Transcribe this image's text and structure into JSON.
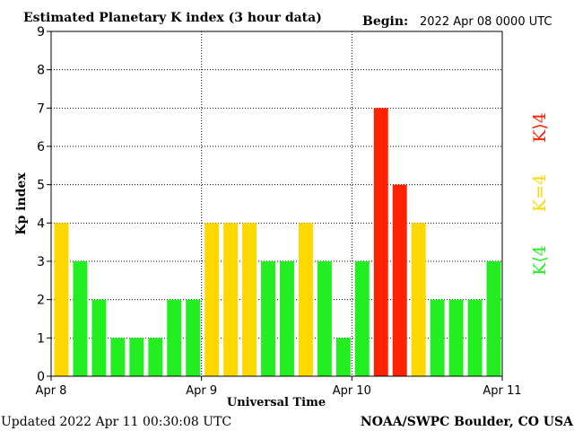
{
  "chart_data": {
    "type": "bar",
    "title": "Estimated Planetary K index (3 hour data)",
    "begin_label": "Begin:",
    "begin_value": "2022 Apr 08 0000 UTC",
    "ylabel": "Kp index",
    "xlabel": "Universal Time",
    "ylim": [
      0,
      9
    ],
    "yticks": [
      "0",
      "1",
      "2",
      "3",
      "4",
      "5",
      "6",
      "7",
      "8",
      "9"
    ],
    "x_day_labels": [
      "Apr 8",
      "Apr 9",
      "Apr 10",
      "Apr 11"
    ],
    "intervals_per_day": 8,
    "values": [
      4,
      3,
      2,
      1,
      1,
      1,
      2,
      2,
      4,
      4,
      4,
      3,
      3,
      4,
      3,
      1,
      3,
      7,
      5,
      4,
      2,
      2,
      2,
      3
    ],
    "grid": true,
    "legend": [
      {
        "label": "K⟨4",
        "color": "#22ee22"
      },
      {
        "label": "K=4",
        "color": "#ffd800"
      },
      {
        "label": "K⟩4",
        "color": "#ff2200"
      }
    ],
    "colors": {
      "below": "#22ee22",
      "equal": "#ffd800",
      "above": "#ff2200"
    }
  },
  "footer": {
    "updated": "Updated 2022 Apr 11 00:30:08 UTC",
    "source": "NOAA/SWPC Boulder, CO USA"
  }
}
